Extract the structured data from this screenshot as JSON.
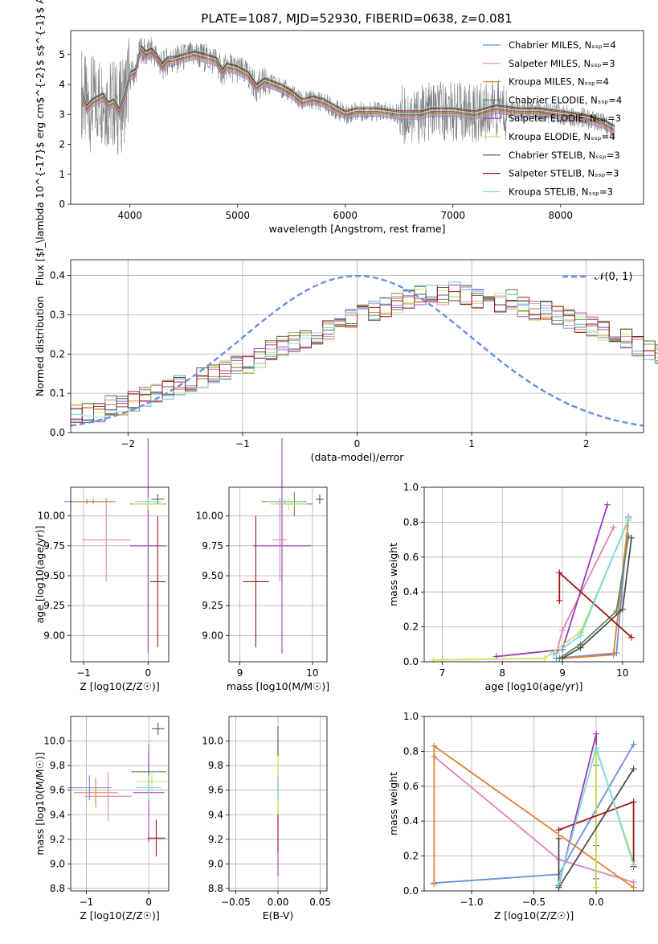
{
  "title": "PLATE=1087, MJD=52930, FIBERID=0638, z=0.081",
  "colors": {
    "data": "#808080",
    "grid": "#b0b0b0",
    "series": [
      "#6a8fdc",
      "#e383b6",
      "#e0812f",
      "#5c8a5c",
      "#9a3cb8",
      "#c8e65a",
      "#505050",
      "#a01818",
      "#7fd8e0"
    ]
  },
  "chart_data": [
    {
      "type": "line",
      "id": "spectrum",
      "xlabel": "wavelength [Angstrom, rest frame]",
      "ylabel": "Flux [$f_\\lambda 10^{-17}$ erg cm$^{-2}$ s$^{-1}$ A$^{-1}$]",
      "xlim": [
        3450,
        8770
      ],
      "ylim": [
        0,
        5.8
      ],
      "xticks": [
        4000,
        5000,
        6000,
        7000,
        8000
      ],
      "yticks": [
        0,
        1,
        2,
        3,
        4,
        5
      ],
      "grid": false,
      "legend_position": "right",
      "legend": [
        "Chabrier MILES, N_SSP=4",
        "Salpeter MILES, N_SSP=3",
        "Kroupa MILES, N_SSP=4",
        "Chabrier ELODIE, N_SSP=4",
        "Salpeter ELODIE, N_SSP=3",
        "Kroupa ELODIE, N_SSP=4",
        "Chabrier STELIB, N_SSP=3",
        "Salpeter STELIB, N_SSP=3",
        "Kroupa STELIB, N_SSP=3"
      ],
      "model_x": [
        3550,
        3600,
        3650,
        3700,
        3750,
        3800,
        3850,
        3900,
        3950,
        4000,
        4050,
        4100,
        4150,
        4200,
        4250,
        4300,
        4350,
        4400,
        4500,
        4600,
        4700,
        4800,
        4860,
        4900,
        5000,
        5100,
        5175,
        5250,
        5400,
        5500,
        5600,
        5700,
        5800,
        5900,
        6000,
        6100,
        6300,
        6500,
        6563,
        6700,
        6800,
        7000,
        7200,
        7400,
        7600,
        7800,
        8000,
        8200,
        8400,
        8500
      ],
      "model_y": [
        3.8,
        3.2,
        3.4,
        3.5,
        3.6,
        3.3,
        3.4,
        3.1,
        3.6,
        4.3,
        4.4,
        5.2,
        5.0,
        5.1,
        4.9,
        4.6,
        4.8,
        4.8,
        4.9,
        5.0,
        4.9,
        4.8,
        4.4,
        4.6,
        4.5,
        4.3,
        3.9,
        4.1,
        3.9,
        3.7,
        3.4,
        3.5,
        3.4,
        3.2,
        3.0,
        3.1,
        3.1,
        3.0,
        3.0,
        3.0,
        3.1,
        3.1,
        3.0,
        3.2,
        3.1,
        3.1,
        3.0,
        2.9,
        2.7,
        2.5
      ]
    },
    {
      "type": "line",
      "id": "residuals",
      "xlabel": "(data-model)/error",
      "ylabel": "Normed distribution",
      "xlim": [
        -2.5,
        2.5
      ],
      "ylim": [
        0,
        0.44
      ],
      "xticks": [
        -2,
        -1,
        0,
        1,
        2
      ],
      "yticks": [
        0.0,
        0.1,
        0.2,
        0.3,
        0.4
      ],
      "grid": true,
      "legend_position": "top-right",
      "legend": [
        "N(0,1)"
      ],
      "bin_width": 0.1,
      "hist_x0": -2.5,
      "histogram": [
        0.05,
        0.05,
        0.05,
        0.07,
        0.07,
        0.08,
        0.09,
        0.1,
        0.11,
        0.12,
        0.13,
        0.14,
        0.15,
        0.16,
        0.17,
        0.17,
        0.19,
        0.21,
        0.22,
        0.23,
        0.24,
        0.25,
        0.26,
        0.28,
        0.29,
        0.3,
        0.31,
        0.32,
        0.33,
        0.34,
        0.35,
        0.35,
        0.35,
        0.36,
        0.35,
        0.34,
        0.33,
        0.33,
        0.34,
        0.32,
        0.31,
        0.31,
        0.3,
        0.29,
        0.28,
        0.27,
        0.26,
        0.25,
        0.24,
        0.22,
        0.21,
        0.2,
        0.18,
        0.17,
        0.15,
        0.14,
        0.13,
        0.12,
        0.1,
        0.09,
        0.08,
        0.08,
        0.07,
        0.06,
        0.06,
        0.06,
        0.05,
        0.05,
        0.05,
        0.05
      ]
    },
    {
      "type": "scatter",
      "id": "age-vs-Z",
      "xlabel": "Z [log10(Z/Z☉)]",
      "ylabel": "age [log10(age/yr)]",
      "xlim": [
        -1.2,
        0.32
      ],
      "ylim": [
        8.78,
        10.24
      ],
      "xticks": [
        -1,
        0
      ],
      "yticks": [
        9.0,
        9.25,
        9.5,
        9.75,
        10.0
      ],
      "grid": true,
      "points": [
        {
          "x": -0.95,
          "y": 10.12,
          "xerr": 0.35,
          "yerr": 0.02,
          "c": 0
        },
        {
          "x": -0.65,
          "y": 9.8,
          "xerr": 0.38,
          "yerr": 0.35,
          "c": 1
        },
        {
          "x": -0.85,
          "y": 10.12,
          "xerr": 0.35,
          "yerr": 0.02,
          "c": 2
        },
        {
          "x": 0.0,
          "y": 10.1,
          "xerr": 0.28,
          "yerr": 0.04,
          "c": 3
        },
        {
          "x": 0.0,
          "y": 9.75,
          "xerr": 0.28,
          "yerr": 0.9,
          "c": 4
        },
        {
          "x": 0.0,
          "y": 10.1,
          "xerr": 0.25,
          "yerr": 0.05,
          "c": 5
        },
        {
          "x": 0.15,
          "y": 10.14,
          "xerr": 0.1,
          "yerr": 0.04,
          "c": 6
        },
        {
          "x": 0.15,
          "y": 9.45,
          "xerr": 0.12,
          "yerr": 0.55,
          "c": 7
        },
        {
          "x": 0.0,
          "y": 10.12,
          "xerr": 0.2,
          "yerr": 0.02,
          "c": 8
        }
      ]
    },
    {
      "type": "scatter",
      "id": "age-vs-mass",
      "xlabel": "mass [log10(M/M☉)]",
      "ylabel": "",
      "xlim": [
        8.85,
        10.2
      ],
      "ylim": [
        8.78,
        10.24
      ],
      "xticks": [
        9,
        10
      ],
      "yticks": [
        9.0,
        9.25,
        9.5,
        9.75,
        10.0
      ],
      "grid": true,
      "points": [
        {
          "x": 9.62,
          "y": 10.12,
          "xerr": 0.3,
          "yerr": 0.02,
          "c": 0
        },
        {
          "x": 9.55,
          "y": 9.8,
          "xerr": 0.1,
          "yerr": 0.35,
          "c": 1
        },
        {
          "x": 9.58,
          "y": 10.12,
          "xerr": 0.28,
          "yerr": 0.02,
          "c": 2
        },
        {
          "x": 9.75,
          "y": 10.1,
          "xerr": 0.25,
          "yerr": 0.1,
          "c": 3
        },
        {
          "x": 9.58,
          "y": 9.75,
          "xerr": 0.4,
          "yerr": 0.9,
          "c": 4
        },
        {
          "x": 9.67,
          "y": 10.1,
          "xerr": 0.25,
          "yerr": 0.05,
          "c": 5
        },
        {
          "x": 10.1,
          "y": 10.14,
          "xerr": 0.05,
          "yerr": 0.04,
          "c": 6
        },
        {
          "x": 9.22,
          "y": 9.45,
          "xerr": 0.18,
          "yerr": 0.55,
          "c": 7
        },
        {
          "x": 9.62,
          "y": 10.12,
          "xerr": 0.25,
          "yerr": 0.02,
          "c": 8
        }
      ]
    },
    {
      "type": "line",
      "id": "massweight-vs-age",
      "xlabel": "age [log10(age/yr)]",
      "ylabel": "mass weight",
      "xlim": [
        6.7,
        10.35
      ],
      "ylim": [
        0,
        1.0
      ],
      "xticks": [
        7,
        8,
        9,
        10
      ],
      "yticks": [
        0.0,
        0.2,
        0.4,
        0.6,
        0.8,
        1.0
      ],
      "grid": true,
      "series": [
        {
          "c": 0,
          "x": [
            8.9,
            9.9,
            10.1
          ],
          "y": [
            0.02,
            0.05,
            0.83
          ]
        },
        {
          "c": 1,
          "x": [
            8.9,
            9.0,
            9.85
          ],
          "y": [
            0.05,
            0.18,
            0.77
          ]
        },
        {
          "c": 2,
          "x": [
            9.0,
            9.85,
            10.1
          ],
          "y": [
            0.02,
            0.04,
            0.82
          ]
        },
        {
          "c": 3,
          "x": [
            8.95,
            9.3,
            9.9,
            10.1
          ],
          "y": [
            0.02,
            0.1,
            0.29,
            0.72
          ]
        },
        {
          "c": 4,
          "x": [
            7.9,
            9.0,
            9.75
          ],
          "y": [
            0.03,
            0.07,
            0.9
          ]
        },
        {
          "c": 5,
          "x": [
            6.85,
            8.7,
            9.3,
            10.1
          ],
          "y": [
            0.01,
            0.02,
            0.17,
            0.81
          ]
        },
        {
          "c": 6,
          "x": [
            9.0,
            9.3,
            10.0,
            10.15
          ],
          "y": [
            0.02,
            0.08,
            0.3,
            0.71
          ]
        },
        {
          "c": 7,
          "x": [
            8.95,
            8.95,
            10.15
          ],
          "y": [
            0.35,
            0.51,
            0.14
          ]
        },
        {
          "c": 8,
          "x": [
            8.85,
            9.3,
            10.1
          ],
          "y": [
            0.04,
            0.15,
            0.82
          ]
        }
      ]
    },
    {
      "type": "scatter",
      "id": "mass-vs-Z",
      "xlabel": "Z [log10(Z/Z☉)]",
      "ylabel": "mass [log10(M/M☉)]",
      "xlim": [
        -1.25,
        0.32
      ],
      "ylim": [
        8.78,
        10.2
      ],
      "xticks": [
        -1,
        0
      ],
      "yticks": [
        8.8,
        9.0,
        9.2,
        9.4,
        9.6,
        9.8,
        10.0
      ],
      "grid": true,
      "points": [
        {
          "x": -0.95,
          "y": 9.62,
          "xerr": 0.35,
          "yerr": 0.1,
          "c": 0
        },
        {
          "x": -0.65,
          "y": 9.55,
          "xerr": 0.38,
          "yerr": 0.2,
          "c": 1
        },
        {
          "x": -0.85,
          "y": 9.58,
          "xerr": 0.35,
          "yerr": 0.12,
          "c": 2
        },
        {
          "x": 0.0,
          "y": 9.75,
          "xerr": 0.28,
          "yerr": 0.15,
          "c": 3
        },
        {
          "x": 0.0,
          "y": 9.58,
          "xerr": 0.25,
          "yerr": 0.4,
          "c": 4
        },
        {
          "x": 0.05,
          "y": 9.67,
          "xerr": 0.25,
          "yerr": 0.08,
          "c": 5
        },
        {
          "x": 0.15,
          "y": 10.1,
          "xerr": 0.1,
          "yerr": 0.05,
          "c": 6
        },
        {
          "x": 0.12,
          "y": 9.21,
          "xerr": 0.14,
          "yerr": 0.15,
          "c": 7
        },
        {
          "x": 0.0,
          "y": 9.62,
          "xerr": 0.2,
          "yerr": 0.1,
          "c": 8
        }
      ]
    },
    {
      "type": "scatter",
      "id": "mass-vs-ebv",
      "xlabel": "E(B-V)",
      "ylabel": "",
      "xlim": [
        -0.058,
        0.058
      ],
      "ylim": [
        8.78,
        10.2
      ],
      "xticks": [
        -0.05,
        0.0,
        0.05
      ],
      "yticks": [
        8.8,
        9.0,
        9.2,
        9.4,
        9.6,
        9.8,
        10.0
      ],
      "grid": true,
      "points": [
        {
          "x": 0.0,
          "y": 9.62,
          "xerr": 0,
          "yerr": 0.1,
          "c": 0
        },
        {
          "x": 0.0,
          "y": 9.55,
          "xerr": 0,
          "yerr": 0.2,
          "c": 1
        },
        {
          "x": 0.0,
          "y": 9.58,
          "xerr": 0,
          "yerr": 0.12,
          "c": 2
        },
        {
          "x": 0.0,
          "y": 9.75,
          "xerr": 0,
          "yerr": 0.15,
          "c": 3
        },
        {
          "x": 0.0,
          "y": 9.3,
          "xerr": 0,
          "yerr": 0.4,
          "c": 4
        },
        {
          "x": 0.0,
          "y": 9.67,
          "xerr": 0,
          "yerr": 0.28,
          "c": 5
        },
        {
          "x": 0.0,
          "y": 10.0,
          "xerr": 0,
          "yerr": 0.12,
          "c": 6
        },
        {
          "x": 0.0,
          "y": 9.25,
          "xerr": 0,
          "yerr": 0.15,
          "c": 7
        },
        {
          "x": 0.0,
          "y": 9.62,
          "xerr": 0,
          "yerr": 0.1,
          "c": 8
        }
      ]
    },
    {
      "type": "line",
      "id": "massweight-vs-Z",
      "xlabel": "Z [log10(Z/Z☉)]",
      "ylabel": "mass weight",
      "xlim": [
        -1.38,
        0.38
      ],
      "ylim": [
        0,
        1.0
      ],
      "xticks": [
        -1.0,
        -0.5,
        0.0
      ],
      "yticks": [
        0.0,
        0.2,
        0.4,
        0.6,
        0.8,
        1.0
      ],
      "grid": true,
      "series": [
        {
          "c": 0,
          "x": [
            -1.3,
            -0.3,
            0.3
          ],
          "y": [
            0.045,
            0.095,
            0.84
          ]
        },
        {
          "c": 1,
          "x": [
            -1.3,
            -0.3,
            0.3
          ],
          "y": [
            0.77,
            0.18,
            0.05
          ]
        },
        {
          "c": 2,
          "x": [
            -1.3,
            -1.3,
            0.3
          ],
          "y": [
            0.04,
            0.83,
            0.02
          ]
        },
        {
          "c": 3,
          "x": [
            0.0,
            0.0,
            0.0
          ],
          "y": [
            0.02,
            0.26,
            0.72
          ]
        },
        {
          "c": 4,
          "x": [
            -0.3,
            0.0,
            0.0
          ],
          "y": [
            0.03,
            0.9,
            0.07
          ]
        },
        {
          "c": 5,
          "x": [
            0.0,
            0.0,
            0.3
          ],
          "y": [
            0.02,
            0.81,
            0.17
          ]
        },
        {
          "c": 6,
          "x": [
            -0.3,
            -0.3,
            0.3
          ],
          "y": [
            0.3,
            0.02,
            0.7
          ]
        },
        {
          "c": 7,
          "x": [
            -0.3,
            0.3,
            0.3
          ],
          "y": [
            0.35,
            0.51,
            0.14
          ]
        },
        {
          "c": 8,
          "x": [
            -0.3,
            0.0,
            0.3
          ],
          "y": [
            0.04,
            0.82,
            0.15
          ]
        }
      ]
    }
  ]
}
